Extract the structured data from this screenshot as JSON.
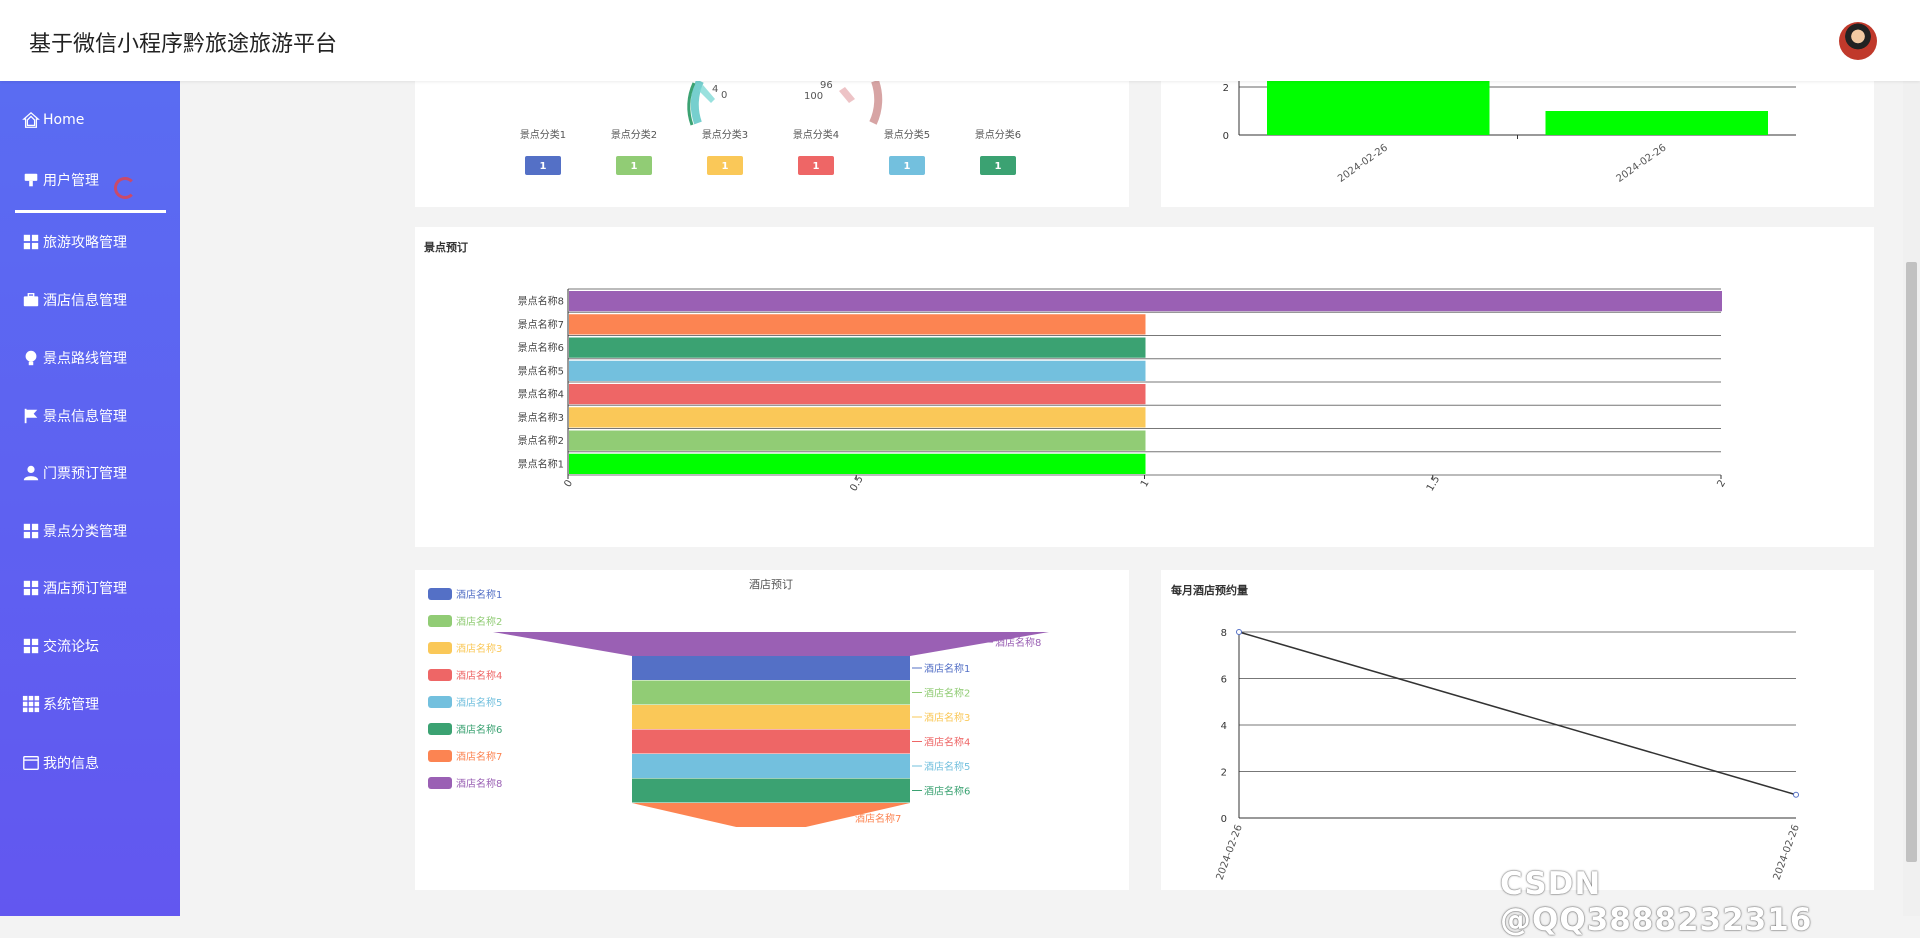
{
  "header": {
    "title": "基于微信小程序黔旅途旅游平台"
  },
  "sidebar": {
    "items": [
      {
        "label": "Home",
        "icon": "home-icon"
      },
      {
        "label": "用户管理",
        "icon": "user-manage-icon"
      },
      {
        "label": "旅游攻略管理",
        "icon": "grid-icon"
      },
      {
        "label": "酒店信息管理",
        "icon": "briefcase-icon"
      },
      {
        "label": "景点路线管理",
        "icon": "bulb-icon"
      },
      {
        "label": "景点信息管理",
        "icon": "flag-icon"
      },
      {
        "label": "门票预订管理",
        "icon": "person-icon"
      },
      {
        "label": "景点分类管理",
        "icon": "grid-icon"
      },
      {
        "label": "酒店预订管理",
        "icon": "grid-icon"
      },
      {
        "label": "交流论坛",
        "icon": "grid-icon"
      },
      {
        "label": "系统管理",
        "icon": "apps-icon"
      },
      {
        "label": "我的信息",
        "icon": "card-icon"
      }
    ]
  },
  "colors": {
    "palette": [
      "#5470c6",
      "#91cc75",
      "#fac858",
      "#ee6666",
      "#73c0de",
      "#3ba272",
      "#fc8452",
      "#9a60b4"
    ],
    "green": "#00ff00",
    "sidebar_top": "#5a6cf2",
    "sidebar_bottom": "#6257f0"
  },
  "chart_data": [
    {
      "type": "gauge",
      "partial": true,
      "gauge_labels": [
        "4",
        "0",
        "96",
        "100"
      ],
      "categories": [
        "景点分类1",
        "景点分类2",
        "景点分类3",
        "景点分类4",
        "景点分类5",
        "景点分类6"
      ],
      "values": [
        1,
        1,
        1,
        1,
        1,
        1
      ]
    },
    {
      "type": "bar",
      "partial": true,
      "categories": [
        "2024-02-26",
        "2024-02-26"
      ],
      "values": [
        2.3,
        1
      ],
      "yticks": [
        "2",
        "0"
      ]
    },
    {
      "type": "bar",
      "orientation": "horizontal",
      "title": "景点预订",
      "categories": [
        "景点名称1",
        "景点名称2",
        "景点名称3",
        "景点名称4",
        "景点名称5",
        "景点名称6",
        "景点名称7",
        "景点名称8"
      ],
      "values": [
        1,
        1,
        1,
        1,
        1,
        1,
        1,
        2
      ],
      "xticks": [
        "0",
        "0.5",
        "1",
        "1.5",
        "2"
      ],
      "xlim": [
        0,
        2
      ]
    },
    {
      "type": "funnel",
      "title": "酒店预订",
      "legend": "top-left",
      "categories": [
        "酒店名称1",
        "酒店名称2",
        "酒店名称3",
        "酒店名称4",
        "酒店名称5",
        "酒店名称6",
        "酒店名称7",
        "酒店名称8"
      ],
      "values": [
        4,
        4,
        4,
        4,
        4,
        4,
        1,
        8
      ]
    },
    {
      "type": "line",
      "title": "每月酒店预约量",
      "x": [
        "2024-02-26",
        "2024-02-26"
      ],
      "values": [
        8,
        1
      ],
      "yticks": [
        "0",
        "2",
        "4",
        "6",
        "8"
      ],
      "ylim": [
        0,
        8
      ]
    }
  ],
  "watermark": "CSDN @QQ3888232316"
}
